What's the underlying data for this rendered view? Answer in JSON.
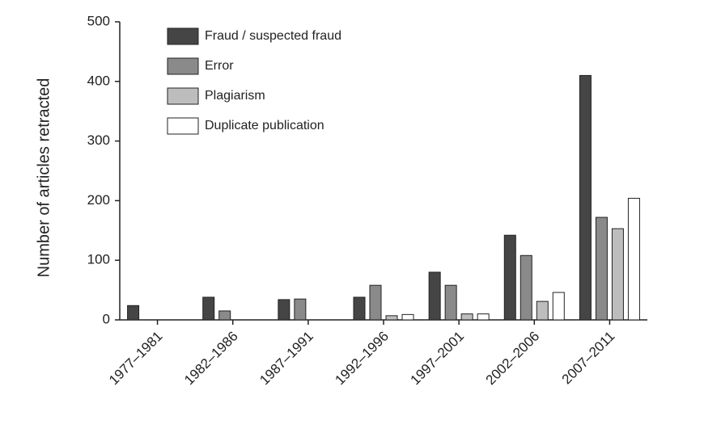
{
  "chart_data": {
    "type": "bar",
    "y_label": "Number of articles retracted",
    "categories": [
      "1977–1981",
      "1982–1986",
      "1987–1991",
      "1992–1996",
      "1997–2001",
      "2002–2006",
      "2007–2011"
    ],
    "series": [
      {
        "name": "Fraud / suspected fraud",
        "color": "#454545",
        "values": [
          24,
          38,
          34,
          38,
          80,
          142,
          410
        ]
      },
      {
        "name": "Error",
        "color": "#8a8a8a",
        "values": [
          0,
          15,
          35,
          58,
          58,
          108,
          172
        ]
      },
      {
        "name": "Plagiarism",
        "color": "#bdbdbd",
        "values": [
          0,
          0,
          0,
          7,
          10,
          31,
          153
        ]
      },
      {
        "name": "Duplicate publication",
        "color": "#ffffff",
        "values": [
          0,
          0,
          0,
          9,
          10,
          46,
          204
        ]
      }
    ],
    "ylim": [
      0,
      500
    ],
    "yticks": [
      0,
      100,
      200,
      300,
      400,
      500
    ],
    "grid": false,
    "legend": "upper left"
  }
}
